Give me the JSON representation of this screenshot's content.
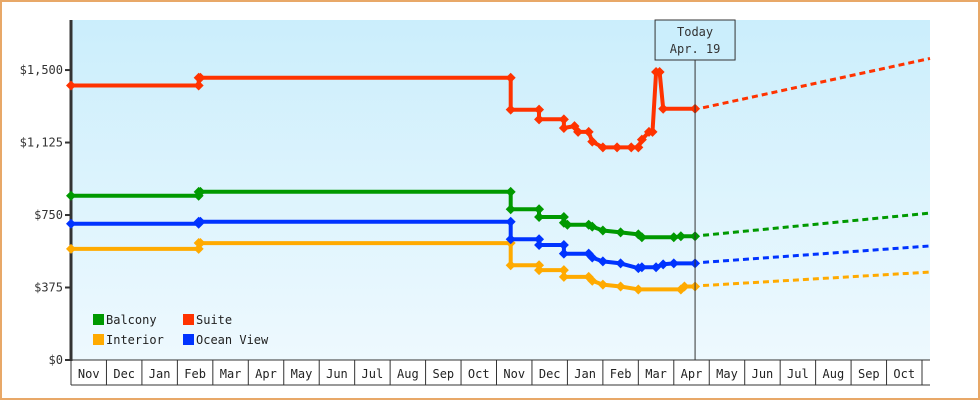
{
  "chart_data": {
    "type": "line",
    "title": "",
    "xlabel": "",
    "ylabel": "",
    "ylim": [
      0,
      1750
    ],
    "yticks": [
      {
        "value": 0,
        "label": "$0"
      },
      {
        "value": 375,
        "label": "$375"
      },
      {
        "value": 750,
        "label": "$750"
      },
      {
        "value": 1125,
        "label": "$1,125"
      },
      {
        "value": 1500,
        "label": "$1,500"
      }
    ],
    "months": [
      "Nov",
      "Dec",
      "Jan",
      "Feb",
      "Mar",
      "Apr",
      "May",
      "Jun",
      "Jul",
      "Aug",
      "Sep",
      "Oct",
      "Nov",
      "Dec",
      "Jan",
      "Feb",
      "Mar",
      "Apr",
      "May",
      "Jun",
      "Jul",
      "Aug",
      "Sep",
      "Oct"
    ],
    "today": {
      "line1": "Today",
      "line2": "Apr. 19",
      "month_index": 17.6
    },
    "grid": false,
    "legend_position": "lower-left",
    "series": [
      {
        "name": "Balcony",
        "color": "#009900",
        "points": [
          [
            0,
            850
          ],
          [
            3.6,
            850
          ],
          [
            3.6,
            870
          ],
          [
            3.65,
            870
          ],
          [
            12.4,
            870
          ],
          [
            12.4,
            780
          ],
          [
            13.2,
            780
          ],
          [
            13.2,
            740
          ],
          [
            13.9,
            740
          ],
          [
            13.9,
            710
          ],
          [
            14.0,
            700
          ],
          [
            14.6,
            700
          ],
          [
            14.7,
            690
          ],
          [
            15.0,
            670
          ],
          [
            15.5,
            660
          ],
          [
            16.0,
            650
          ],
          [
            16.1,
            635
          ],
          [
            17.0,
            635
          ],
          [
            17.2,
            640
          ],
          [
            17.6,
            640
          ]
        ],
        "forecast": [
          [
            17.6,
            640
          ],
          [
            24,
            760
          ]
        ]
      },
      {
        "name": "Suite",
        "color": "#ff3300",
        "points": [
          [
            0,
            1420
          ],
          [
            3.6,
            1420
          ],
          [
            3.6,
            1460
          ],
          [
            3.65,
            1460
          ],
          [
            12.4,
            1460
          ],
          [
            12.4,
            1295
          ],
          [
            13.2,
            1295
          ],
          [
            13.2,
            1245
          ],
          [
            13.9,
            1245
          ],
          [
            13.9,
            1200
          ],
          [
            14.2,
            1210
          ],
          [
            14.3,
            1180
          ],
          [
            14.6,
            1180
          ],
          [
            14.7,
            1130
          ],
          [
            15.0,
            1100
          ],
          [
            15.4,
            1100
          ],
          [
            15.8,
            1100
          ],
          [
            16.0,
            1100
          ],
          [
            16.1,
            1140
          ],
          [
            16.3,
            1180
          ],
          [
            16.4,
            1180
          ],
          [
            16.5,
            1490
          ],
          [
            16.6,
            1490
          ],
          [
            16.7,
            1300
          ],
          [
            17.6,
            1300
          ]
        ],
        "forecast": [
          [
            17.6,
            1300
          ],
          [
            24,
            1560
          ]
        ]
      },
      {
        "name": "Interior",
        "color": "#ffaa00",
        "points": [
          [
            0,
            575
          ],
          [
            3.6,
            575
          ],
          [
            3.6,
            605
          ],
          [
            3.65,
            605
          ],
          [
            12.4,
            605
          ],
          [
            12.4,
            490
          ],
          [
            13.2,
            490
          ],
          [
            13.2,
            465
          ],
          [
            13.9,
            465
          ],
          [
            13.9,
            430
          ],
          [
            14.6,
            430
          ],
          [
            14.7,
            410
          ],
          [
            15.0,
            390
          ],
          [
            15.5,
            380
          ],
          [
            16.0,
            365
          ],
          [
            17.2,
            365
          ],
          [
            17.3,
            380
          ],
          [
            17.6,
            380
          ]
        ],
        "forecast": [
          [
            17.6,
            380
          ],
          [
            24,
            455
          ]
        ]
      },
      {
        "name": "Ocean View",
        "color": "#0033ff",
        "points": [
          [
            0,
            705
          ],
          [
            3.6,
            705
          ],
          [
            3.6,
            715
          ],
          [
            3.65,
            715
          ],
          [
            12.4,
            715
          ],
          [
            12.4,
            625
          ],
          [
            13.2,
            625
          ],
          [
            13.2,
            595
          ],
          [
            13.9,
            595
          ],
          [
            13.9,
            550
          ],
          [
            14.6,
            550
          ],
          [
            14.7,
            530
          ],
          [
            15.0,
            510
          ],
          [
            15.5,
            500
          ],
          [
            16.0,
            475
          ],
          [
            16.1,
            480
          ],
          [
            16.5,
            480
          ],
          [
            16.7,
            495
          ],
          [
            17.0,
            500
          ],
          [
            17.6,
            500
          ]
        ],
        "forecast": [
          [
            17.6,
            500
          ],
          [
            24,
            590
          ]
        ]
      }
    ]
  },
  "legend": [
    {
      "label": "Balcony",
      "color": "#009900"
    },
    {
      "label": "Suite",
      "color": "#ff3300"
    },
    {
      "label": "Interior",
      "color": "#ffaa00"
    },
    {
      "label": "Ocean View",
      "color": "#0033ff"
    }
  ]
}
